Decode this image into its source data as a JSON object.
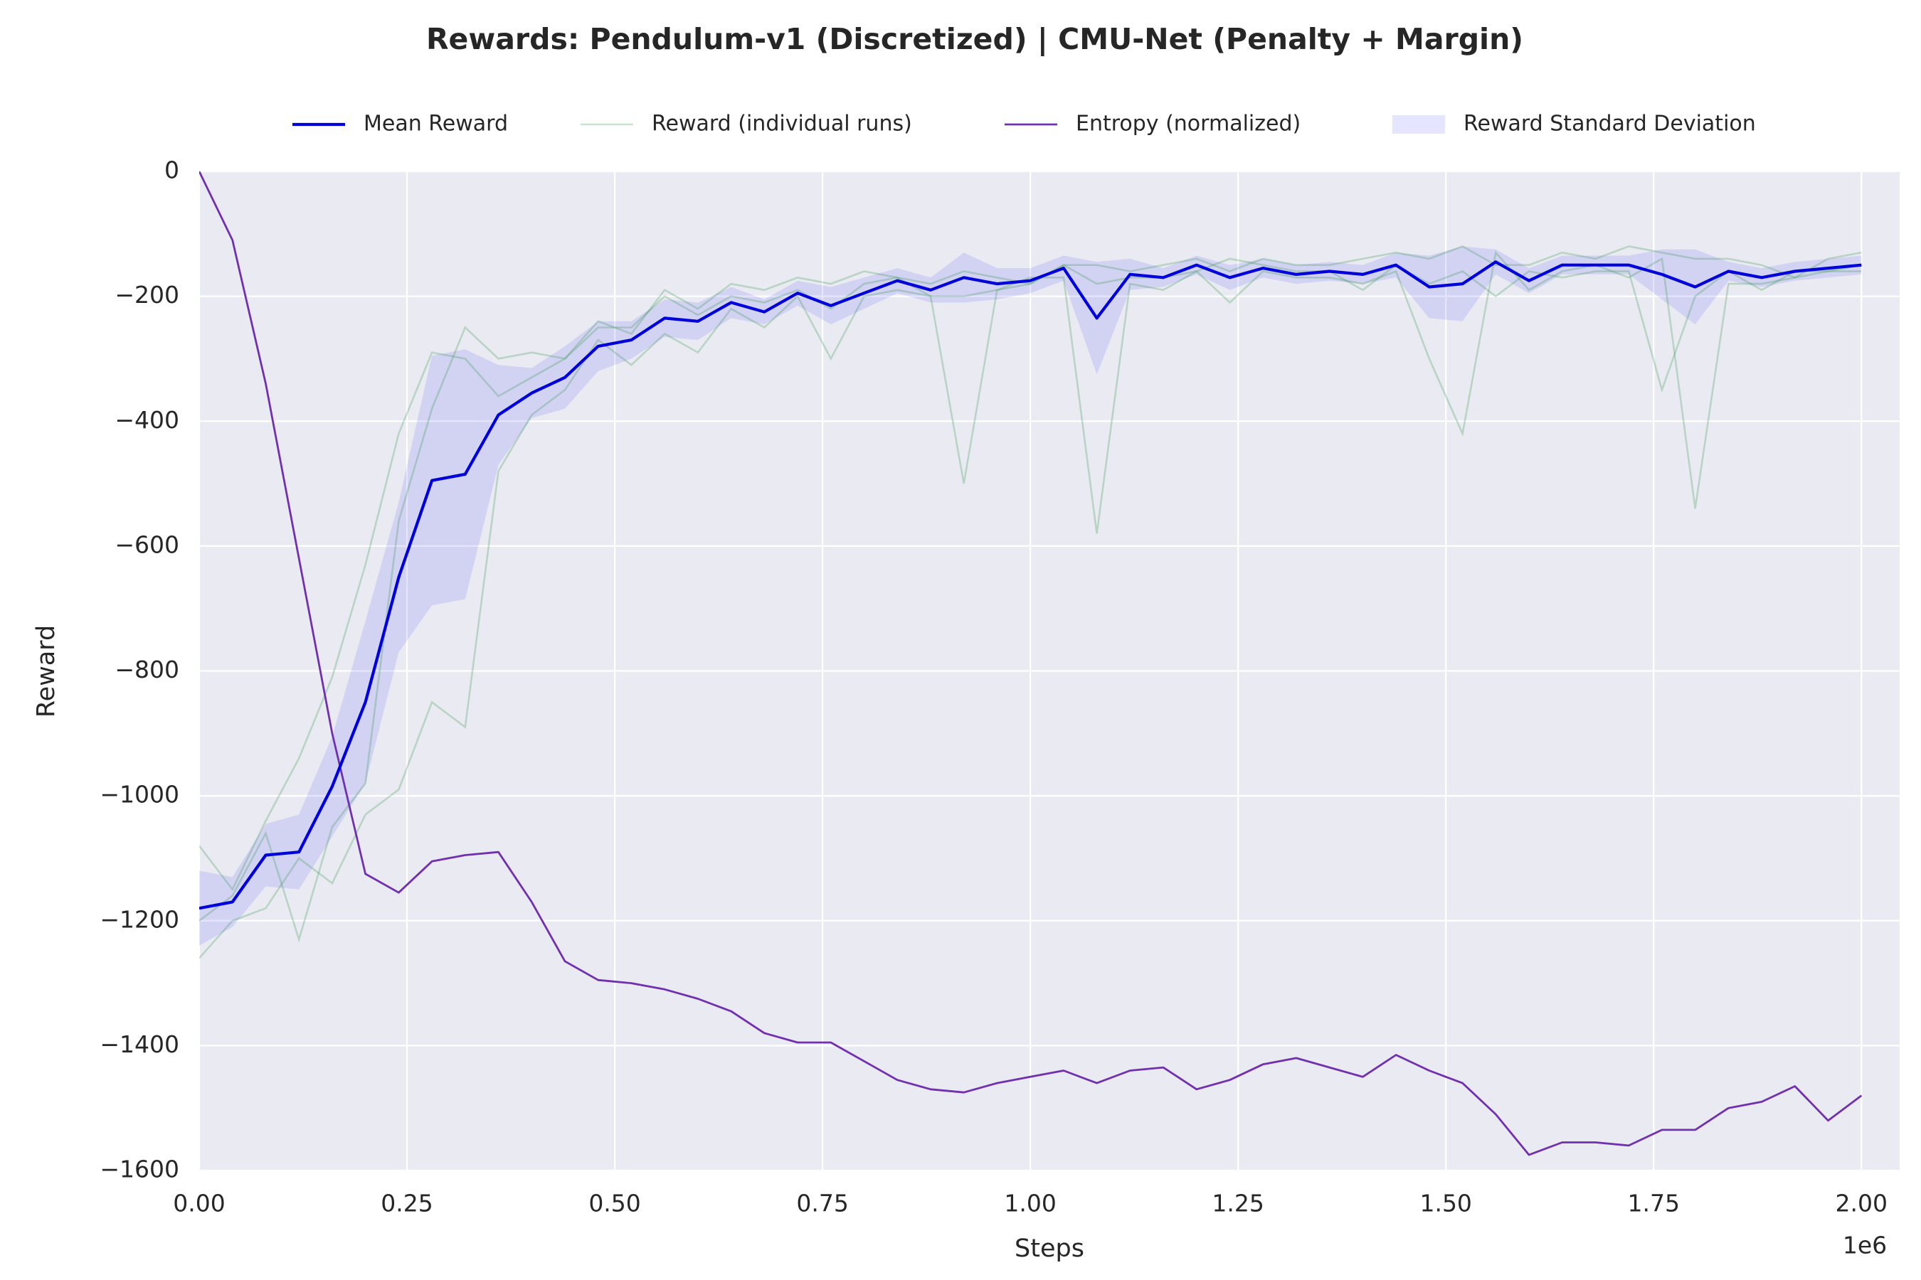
{
  "chart_data": {
    "type": "line",
    "title": "Rewards: Pendulum-v1 (Discretized) | CMU-Net (Penalty + Margin)",
    "xlabel": "Steps",
    "ylabel": "Reward",
    "x_offset_label": "1e6",
    "xlim": [
      0,
      2046000
    ],
    "ylim": [
      -1600,
      0
    ],
    "xticks": [
      {
        "value": 0,
        "label": "0.00"
      },
      {
        "value": 250000,
        "label": "0.25"
      },
      {
        "value": 500000,
        "label": "0.50"
      },
      {
        "value": 750000,
        "label": "0.75"
      },
      {
        "value": 1000000,
        "label": "1.00"
      },
      {
        "value": 1250000,
        "label": "1.25"
      },
      {
        "value": 1500000,
        "label": "1.50"
      },
      {
        "value": 1750000,
        "label": "1.75"
      },
      {
        "value": 2000000,
        "label": "2.00"
      }
    ],
    "yticks": [
      {
        "value": -1600,
        "label": "−1600"
      },
      {
        "value": -1400,
        "label": "−1400"
      },
      {
        "value": -1200,
        "label": "−1200"
      },
      {
        "value": -1000,
        "label": "−1000"
      },
      {
        "value": -800,
        "label": "−800"
      },
      {
        "value": -600,
        "label": "−600"
      },
      {
        "value": -400,
        "label": "−400"
      },
      {
        "value": -200,
        "label": "−200"
      },
      0
    ],
    "grid": true,
    "legend": "top",
    "x": [
      0,
      40000,
      80000,
      120000,
      160000,
      200000,
      240000,
      280000,
      320000,
      360000,
      400000,
      440000,
      480000,
      520000,
      560000,
      600000,
      640000,
      680000,
      720000,
      760000,
      800000,
      840000,
      880000,
      920000,
      960000,
      1000000,
      1040000,
      1080000,
      1120000,
      1160000,
      1200000,
      1240000,
      1280000,
      1320000,
      1360000,
      1400000,
      1440000,
      1480000,
      1520000,
      1560000,
      1600000,
      1640000,
      1680000,
      1720000,
      1760000,
      1800000,
      1840000,
      1880000,
      1920000,
      1960000,
      2000000
    ],
    "series": [
      {
        "name": "Mean Reward",
        "color": "#0000dd",
        "values": [
          -1180,
          -1170,
          -1095,
          -1090,
          -985,
          -850,
          -650,
          -495,
          -485,
          -390,
          -355,
          -330,
          -280,
          -270,
          -235,
          -240,
          -210,
          -225,
          -195,
          -215,
          -195,
          -175,
          -190,
          -170,
          -180,
          -175,
          -155,
          -235,
          -165,
          -170,
          -150,
          -170,
          -155,
          -165,
          -160,
          -165,
          -150,
          -185,
          -180,
          -145,
          -175,
          -150,
          -150,
          -150,
          -165,
          -185,
          -160,
          -170,
          -160,
          -155,
          -150
        ]
      },
      {
        "name": "Entropy (normalized)",
        "color": "#7030b0",
        "values": [
          0,
          -110,
          -340,
          -620,
          -900,
          -1125,
          -1155,
          -1105,
          -1095,
          -1090,
          -1170,
          -1265,
          -1295,
          -1300,
          -1310,
          -1325,
          -1345,
          -1380,
          -1395,
          -1395,
          -1425,
          -1455,
          -1470,
          -1475,
          -1460,
          -1450,
          -1440,
          -1460,
          -1440,
          -1435,
          -1470,
          -1455,
          -1430,
          -1420,
          -1435,
          -1450,
          -1415,
          -1440,
          -1460,
          -1510,
          -1575,
          -1555,
          -1555,
          -1560,
          -1535,
          -1535,
          -1500,
          -1490,
          -1465,
          -1520,
          -1480
        ]
      }
    ],
    "runs": {
      "name": "Reward (individual runs)",
      "color": "#3a9a50",
      "values": [
        [
          -1080,
          -1150,
          -1040,
          -940,
          -810,
          -630,
          -420,
          -290,
          -300,
          -360,
          -330,
          -300,
          -240,
          -260,
          -190,
          -220,
          -180,
          -190,
          -170,
          -180,
          -160,
          -170,
          -180,
          -160,
          -170,
          -180,
          -150,
          -150,
          -160,
          -150,
          -140,
          -160,
          -140,
          -150,
          -150,
          -140,
          -130,
          -140,
          -120,
          -150,
          -150,
          -130,
          -140,
          -120,
          -130,
          -140,
          -140,
          -150,
          -170,
          -140,
          -130
        ],
        [
          -1200,
          -1160,
          -1060,
          -1230,
          -1050,
          -980,
          -560,
          -380,
          -250,
          -300,
          -290,
          -300,
          -250,
          -250,
          -200,
          -230,
          -200,
          -210,
          -190,
          -220,
          -180,
          -170,
          -200,
          -200,
          -190,
          -170,
          -170,
          -580,
          -180,
          -190,
          -160,
          -210,
          -160,
          -170,
          -170,
          -180,
          -160,
          -300,
          -420,
          -130,
          -190,
          -160,
          -150,
          -170,
          -140,
          -540,
          -180,
          -180,
          -170,
          -160,
          -160
        ],
        [
          -1260,
          -1200,
          -1180,
          -1100,
          -1140,
          -1030,
          -990,
          -850,
          -890,
          -480,
          -390,
          -350,
          -270,
          -310,
          -260,
          -290,
          -220,
          -250,
          -200,
          -300,
          -200,
          -190,
          -200,
          -500,
          -190,
          -180,
          -150,
          -180,
          -170,
          -170,
          -160,
          -140,
          -150,
          -160,
          -160,
          -190,
          -150,
          -180,
          -160,
          -200,
          -160,
          -170,
          -160,
          -160,
          -350,
          -200,
          -160,
          -190,
          -160,
          -160,
          -150
        ]
      ]
    },
    "band": {
      "name": "Reward Standard Deviation",
      "color": "#0000ff",
      "std": [
        60,
        40,
        50,
        60,
        80,
        130,
        120,
        200,
        200,
        80,
        40,
        50,
        40,
        30,
        30,
        30,
        25,
        20,
        20,
        30,
        25,
        20,
        20,
        40,
        25,
        20,
        20,
        90,
        25,
        15,
        15,
        20,
        15,
        15,
        15,
        15,
        20,
        50,
        60,
        20,
        20,
        15,
        15,
        15,
        40,
        60,
        15,
        15,
        15,
        15,
        15
      ]
    }
  }
}
